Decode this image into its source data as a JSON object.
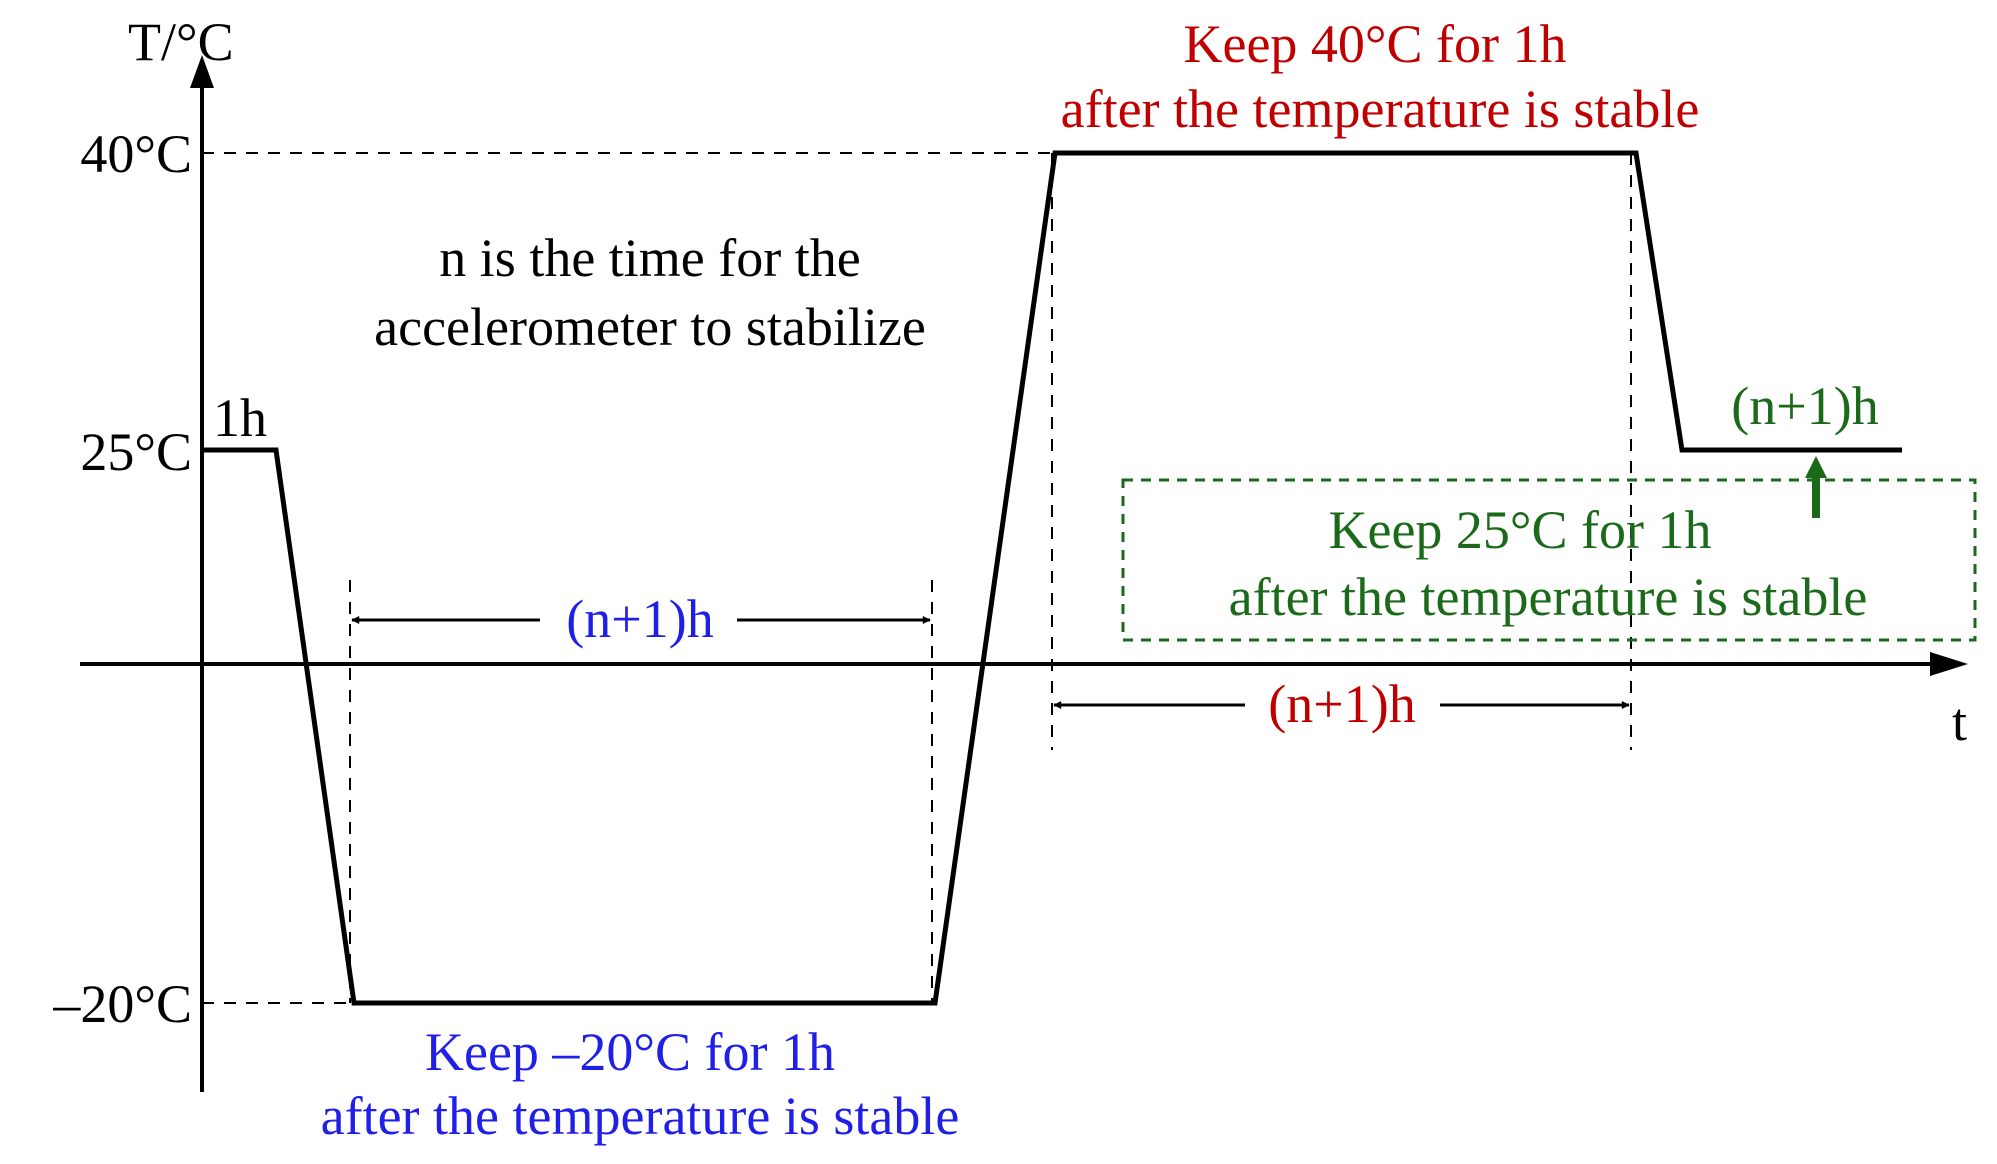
{
  "axes": {
    "y_label": "T/°C",
    "x_label": "t",
    "tick_40": "40°C",
    "tick_25": "25°C",
    "tick_minus20": "–20°C"
  },
  "labels": {
    "initial_hold": "1h",
    "stabilize_note_line1": "n is the time for the",
    "stabilize_note_line2": "accelerometer to stabilize",
    "cold_duration": "(n+1)h",
    "cold_keep_line1": "Keep –20°C for 1h",
    "cold_keep_line2": "after the temperature is stable",
    "hot_keep_line1": "Keep 40°C for 1h",
    "hot_keep_line2": "after the temperature is stable",
    "hot_duration": "(n+1)h",
    "final_duration": "(n+1)h",
    "final_keep_line1": "Keep 25°C for 1h",
    "final_keep_line2": "after the temperature is stable"
  },
  "colors": {
    "curve": "#000000",
    "red": "#c00000",
    "blue": "#1f1fe8",
    "green": "#1a6a1a"
  }
}
